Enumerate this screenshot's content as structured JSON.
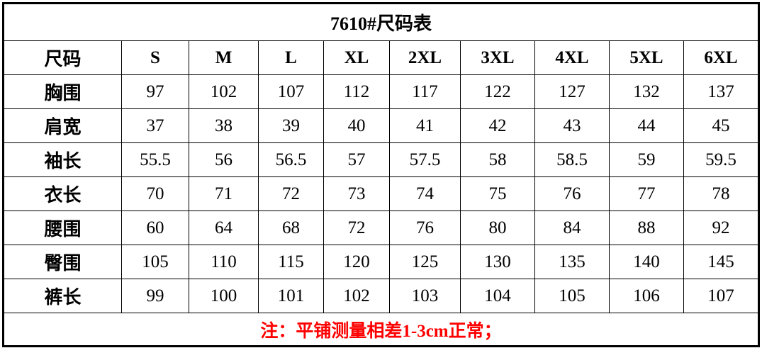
{
  "title": "7610#尺码表",
  "header": {
    "label": "尺码",
    "sizes": [
      "S",
      "M",
      "L",
      "XL",
      "2XL",
      "3XL",
      "4XL",
      "5XL",
      "6XL"
    ]
  },
  "rows": [
    {
      "label": "胸围",
      "values": [
        "97",
        "102",
        "107",
        "112",
        "117",
        "122",
        "127",
        "132",
        "137"
      ]
    },
    {
      "label": "肩宽",
      "values": [
        "37",
        "38",
        "39",
        "40",
        "41",
        "42",
        "43",
        "44",
        "45"
      ]
    },
    {
      "label": "袖长",
      "values": [
        "55.5",
        "56",
        "56.5",
        "57",
        "57.5",
        "58",
        "58.5",
        "59",
        "59.5"
      ]
    },
    {
      "label": "衣长",
      "values": [
        "70",
        "71",
        "72",
        "73",
        "74",
        "75",
        "76",
        "77",
        "78"
      ]
    },
    {
      "label": "腰围",
      "values": [
        "60",
        "64",
        "68",
        "72",
        "76",
        "80",
        "84",
        "88",
        "92"
      ]
    },
    {
      "label": "臀围",
      "values": [
        "105",
        "110",
        "115",
        "120",
        "125",
        "130",
        "135",
        "140",
        "145"
      ]
    },
    {
      "label": "裤长",
      "values": [
        "99",
        "100",
        "101",
        "102",
        "103",
        "104",
        "105",
        "106",
        "107"
      ]
    }
  ],
  "note": "注：平铺测量相差1-3cm正常；",
  "colors": {
    "note": "#ff0000",
    "border": "#000000"
  }
}
